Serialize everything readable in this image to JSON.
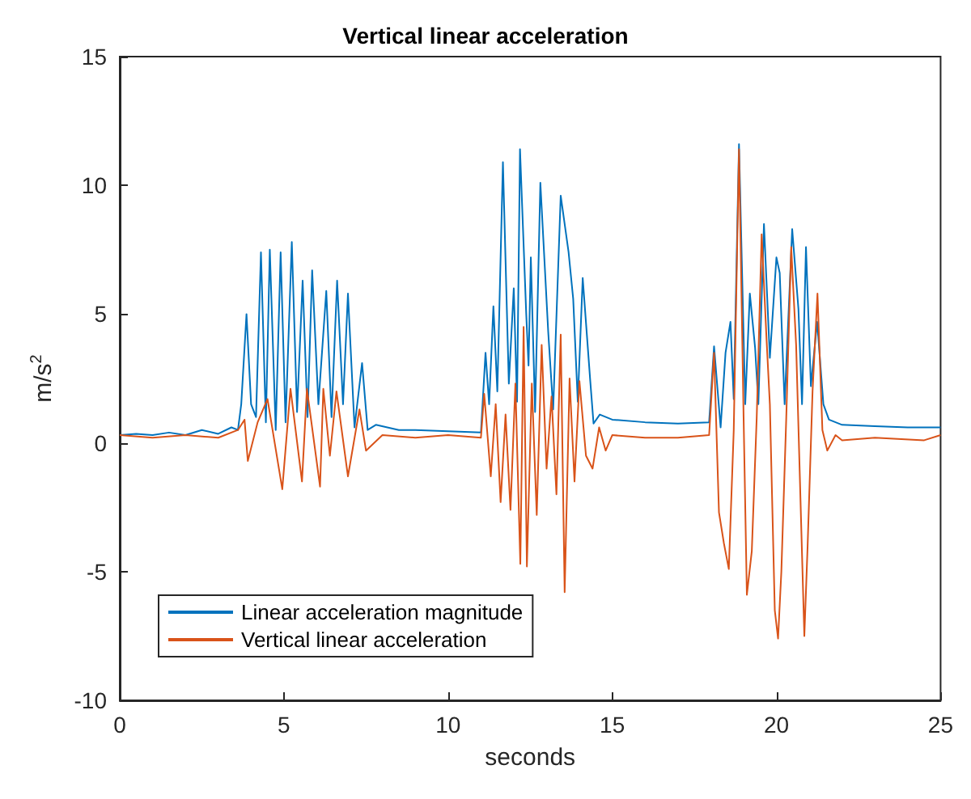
{
  "chart_data": {
    "type": "line",
    "title": "Vertical linear acceleration",
    "xlabel": "seconds",
    "ylabel": "m/s$^{2}$",
    "xlim": [
      0,
      25
    ],
    "xticks": [
      0,
      5,
      10,
      15,
      20,
      25
    ],
    "ylim": [
      -10,
      15
    ],
    "yticks": [
      -10,
      -5,
      0,
      5,
      10,
      15
    ],
    "grid": false,
    "legend": "bottom left",
    "marker": "none",
    "line_style": "solid",
    "series": [
      {
        "name": "Linear acceleration magnitude",
        "color": "#0072bd",
        "x": [
          0,
          0.5,
          1,
          1.5,
          2,
          2.5,
          3,
          3.4,
          3.6,
          3.7,
          3.86,
          4.0,
          4.15,
          4.3,
          4.45,
          4.57,
          4.75,
          4.9,
          5.05,
          5.24,
          5.4,
          5.57,
          5.72,
          5.86,
          6.05,
          6.29,
          6.45,
          6.62,
          6.8,
          6.95,
          7.15,
          7.38,
          7.55,
          7.8,
          8.5,
          9,
          10,
          11,
          11.14,
          11.25,
          11.38,
          11.5,
          11.67,
          11.85,
          12.0,
          12.1,
          12.19,
          12.38,
          12.45,
          12.52,
          12.65,
          12.81,
          13.05,
          13.2,
          13.43,
          13.67,
          13.81,
          13.95,
          14.1,
          14.33,
          14.43,
          14.62,
          15,
          16,
          17,
          17.95,
          18.1,
          18.3,
          18.45,
          18.6,
          18.7,
          18.86,
          19.05,
          19.19,
          19.35,
          19.45,
          19.62,
          19.8,
          20.0,
          20.1,
          20.25,
          20.48,
          20.67,
          20.78,
          20.9,
          21.05,
          21.24,
          21.43,
          21.6,
          22,
          23,
          24,
          25
        ],
        "values": [
          0.3,
          0.35,
          0.3,
          0.4,
          0.3,
          0.5,
          0.35,
          0.6,
          0.5,
          1.5,
          5.0,
          1.5,
          1.0,
          7.4,
          0.8,
          7.5,
          0.5,
          7.4,
          0.8,
          7.8,
          1.2,
          6.3,
          1.0,
          6.7,
          1.5,
          5.9,
          1.0,
          6.3,
          1.5,
          5.8,
          0.6,
          3.1,
          0.5,
          0.7,
          0.5,
          0.5,
          0.45,
          0.4,
          3.5,
          1.5,
          5.3,
          2.0,
          10.9,
          2.3,
          6.0,
          1.6,
          11.4,
          5.0,
          3.0,
          7.2,
          1.2,
          10.1,
          4.3,
          1.3,
          9.6,
          7.4,
          5.6,
          1.6,
          6.4,
          2.4,
          0.75,
          1.1,
          0.9,
          0.8,
          0.75,
          0.8,
          3.75,
          0.6,
          3.5,
          4.7,
          1.7,
          11.6,
          1.5,
          5.8,
          3.7,
          1.5,
          8.5,
          3.3,
          7.2,
          6.6,
          1.5,
          8.3,
          5.2,
          1.5,
          7.6,
          2.2,
          4.7,
          1.5,
          0.9,
          0.7,
          0.65,
          0.6,
          0.6
        ]
      },
      {
        "name": "Vertical linear acceleration",
        "color": "#d95319",
        "x": [
          0,
          1,
          2,
          3,
          3.6,
          3.8,
          3.9,
          4.2,
          4.5,
          4.95,
          5.2,
          5.55,
          5.7,
          6.1,
          6.2,
          6.4,
          6.6,
          6.95,
          7.3,
          7.5,
          8,
          9,
          10,
          11,
          11.1,
          11.3,
          11.45,
          11.6,
          11.75,
          11.9,
          12.05,
          12.2,
          12.3,
          12.4,
          12.55,
          12.7,
          12.85,
          13.0,
          13.15,
          13.3,
          13.43,
          13.55,
          13.7,
          13.85,
          14.0,
          14.2,
          14.4,
          14.6,
          14.8,
          15,
          16,
          17,
          17.95,
          18.1,
          18.25,
          18.4,
          18.55,
          18.7,
          18.86,
          19.0,
          19.1,
          19.25,
          19.4,
          19.55,
          19.7,
          19.8,
          19.95,
          20.05,
          20.15,
          20.3,
          20.45,
          20.6,
          20.75,
          20.85,
          20.95,
          21.1,
          21.25,
          21.4,
          21.55,
          21.8,
          22,
          23,
          24.5,
          25
        ],
        "values": [
          0.3,
          0.2,
          0.3,
          0.2,
          0.5,
          0.9,
          -0.7,
          0.8,
          1.7,
          -1.8,
          2.1,
          -1.5,
          2.1,
          -1.7,
          2.1,
          -0.5,
          2.0,
          -1.3,
          1.3,
          -0.3,
          0.3,
          0.2,
          0.3,
          0.2,
          1.9,
          -1.3,
          1.5,
          -2.3,
          1.1,
          -2.6,
          2.3,
          -4.7,
          4.5,
          -4.8,
          2.3,
          -2.8,
          3.8,
          -1.0,
          1.8,
          -2.0,
          4.2,
          -5.8,
          2.5,
          -1.5,
          2.4,
          -0.5,
          -1.0,
          0.6,
          -0.3,
          0.3,
          0.2,
          0.2,
          0.3,
          3.5,
          -2.7,
          -3.9,
          -4.9,
          0.5,
          11.4,
          1.0,
          -5.9,
          -4.2,
          1.0,
          8.1,
          4.0,
          1.5,
          -6.5,
          -7.6,
          -5.0,
          1.0,
          7.6,
          3.8,
          -3.0,
          -7.5,
          -4.0,
          2.0,
          5.8,
          0.5,
          -0.3,
          0.3,
          0.1,
          0.2,
          0.1,
          0.3
        ]
      }
    ]
  }
}
